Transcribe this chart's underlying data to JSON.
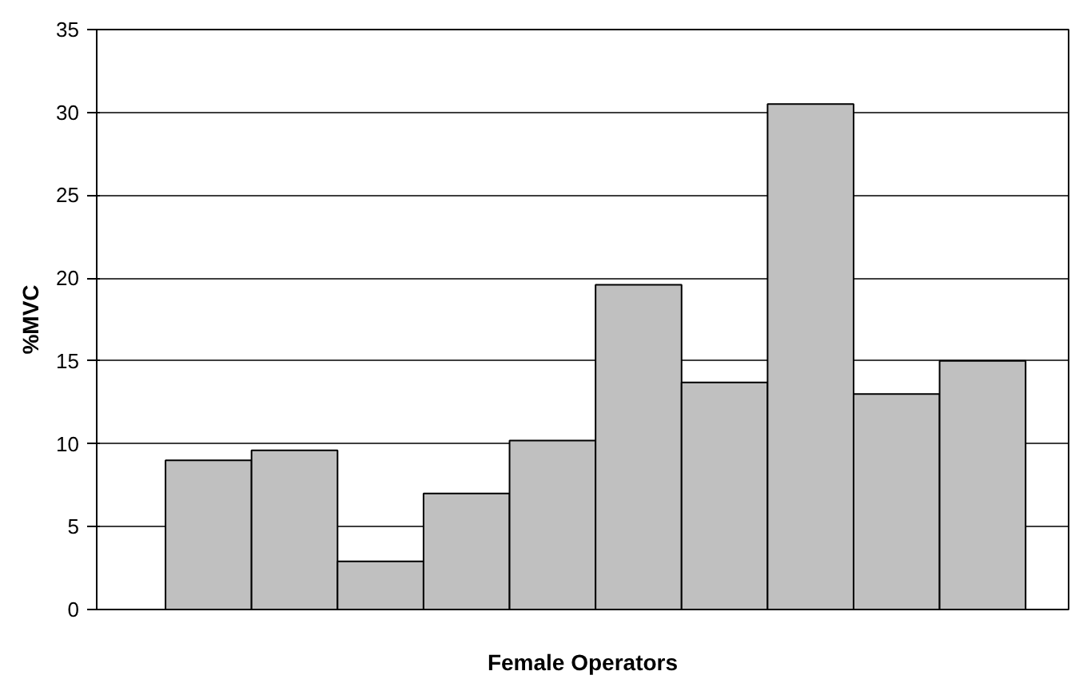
{
  "chart_data": {
    "type": "bar",
    "xlabel": "Female Operators",
    "ylabel": "%MVC",
    "categories": [
      null,
      null,
      null,
      null,
      null,
      null,
      null,
      null,
      null,
      null
    ],
    "values": [
      9.0,
      9.6,
      2.9,
      7.0,
      10.2,
      19.6,
      13.7,
      30.5,
      13.0,
      15.0
    ],
    "color": "#c0c0c0",
    "ylim": [
      0,
      35
    ],
    "yticks": [
      0,
      5,
      10,
      15,
      20,
      25,
      30,
      35
    ],
    "grid": "y",
    "tick_labels": "y"
  }
}
